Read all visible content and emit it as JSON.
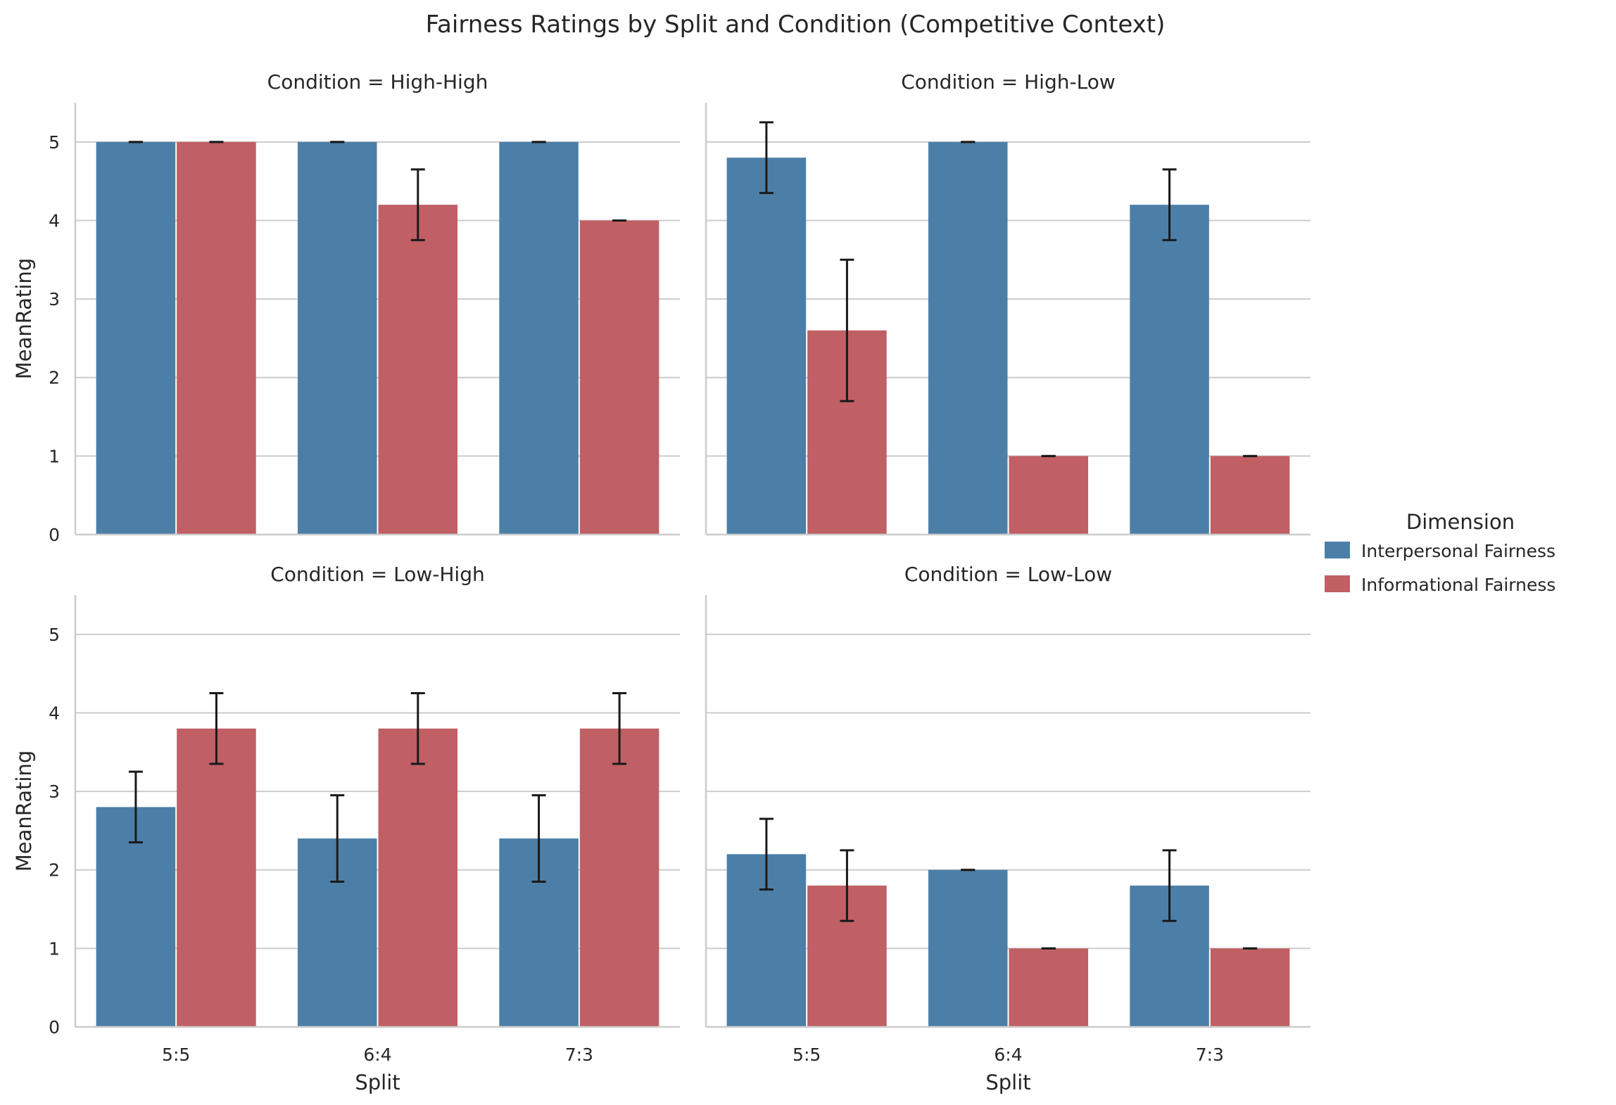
{
  "figure": {
    "title": "Fairness Ratings by Split and Condition (Competitive Context)"
  },
  "legend": {
    "title": "Dimension",
    "placement": "center-right",
    "entries": [
      {
        "label": "Interpersonal Fairness",
        "color": "#4c7fa8"
      },
      {
        "label": "Informational Fairness",
        "color": "#c05f64"
      }
    ]
  },
  "chart_data": {
    "type": "bar",
    "layout": "2x2 facet grid",
    "xlabel": "Split",
    "ylabel": "MeanRating",
    "categories": [
      "5:5",
      "6:4",
      "7:3"
    ],
    "ylim": [
      0,
      5.5
    ],
    "yticks": [
      0,
      1,
      2,
      3,
      4,
      5
    ],
    "grid": "horizontal",
    "error_bars": true,
    "panels": [
      {
        "title": "Condition = High-High",
        "series": [
          {
            "name": "Interpersonal Fairness",
            "values": [
              5.0,
              5.0,
              5.0
            ],
            "err_low": [
              5.0,
              5.0,
              5.0
            ],
            "err_high": [
              5.0,
              5.0,
              5.0
            ]
          },
          {
            "name": "Informational Fairness",
            "values": [
              5.0,
              4.2,
              4.0
            ],
            "err_low": [
              5.0,
              3.75,
              4.0
            ],
            "err_high": [
              5.0,
              4.65,
              4.0
            ]
          }
        ]
      },
      {
        "title": "Condition = High-Low",
        "series": [
          {
            "name": "Interpersonal Fairness",
            "values": [
              4.8,
              5.0,
              4.2
            ],
            "err_low": [
              4.35,
              5.0,
              3.75
            ],
            "err_high": [
              5.25,
              5.0,
              4.65
            ]
          },
          {
            "name": "Informational Fairness",
            "values": [
              2.6,
              1.0,
              1.0
            ],
            "err_low": [
              1.7,
              1.0,
              1.0
            ],
            "err_high": [
              3.5,
              1.0,
              1.0
            ]
          }
        ]
      },
      {
        "title": "Condition = Low-High",
        "series": [
          {
            "name": "Interpersonal Fairness",
            "values": [
              2.8,
              2.4,
              2.4
            ],
            "err_low": [
              2.35,
              1.85,
              1.85
            ],
            "err_high": [
              3.25,
              2.95,
              2.95
            ]
          },
          {
            "name": "Informational Fairness",
            "values": [
              3.8,
              3.8,
              3.8
            ],
            "err_low": [
              3.35,
              3.35,
              3.35
            ],
            "err_high": [
              4.25,
              4.25,
              4.25
            ]
          }
        ]
      },
      {
        "title": "Condition = Low-Low",
        "series": [
          {
            "name": "Interpersonal Fairness",
            "values": [
              2.2,
              2.0,
              1.8
            ],
            "err_low": [
              1.75,
              2.0,
              1.35
            ],
            "err_high": [
              2.65,
              2.0,
              2.25
            ]
          },
          {
            "name": "Informational Fairness",
            "values": [
              1.8,
              1.0,
              1.0
            ],
            "err_low": [
              1.35,
              1.0,
              1.0
            ],
            "err_high": [
              2.25,
              1.0,
              1.0
            ]
          }
        ]
      }
    ]
  }
}
